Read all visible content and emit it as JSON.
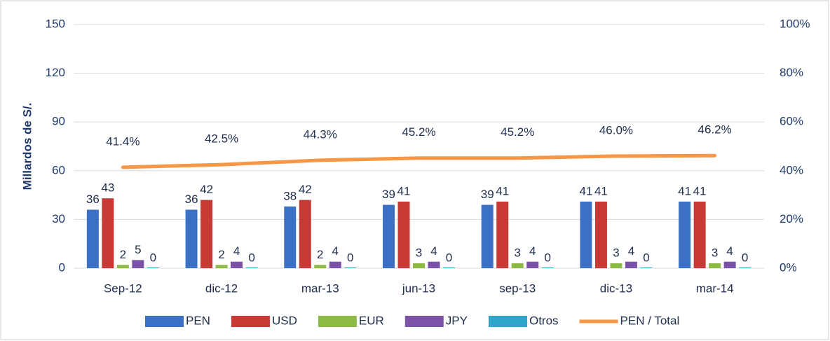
{
  "chart_data": {
    "type": "bar",
    "y_label": "Millardos de S/.",
    "categories": [
      "Sep-12",
      "dic-12",
      "mar-13",
      "jun-13",
      "sep-13",
      "dic-13",
      "mar-14"
    ],
    "series": [
      {
        "name": "PEN",
        "color": "#3b70c4",
        "values": [
          36,
          36,
          38,
          39,
          39,
          41,
          41
        ]
      },
      {
        "name": "USD",
        "color": "#c83a36",
        "values": [
          43,
          42,
          42,
          41,
          41,
          41,
          41
        ]
      },
      {
        "name": "EUR",
        "color": "#8cba45",
        "values": [
          2,
          2,
          2,
          3,
          3,
          3,
          3
        ]
      },
      {
        "name": "JPY",
        "color": "#7c52a8",
        "values": [
          5,
          4,
          4,
          4,
          4,
          4,
          4
        ]
      },
      {
        "name": "Otros",
        "color": "#2ea5c9",
        "values": [
          0,
          0,
          0,
          0,
          0,
          0,
          0
        ]
      },
      {
        "name": "PEN / Total",
        "color": "#f79646",
        "type": "line",
        "axis": "y2",
        "values": [
          41.4,
          42.5,
          44.3,
          45.2,
          45.2,
          46.0,
          46.2
        ],
        "value_labels": [
          "41.4%",
          "42.5%",
          "44.3%",
          "45.2%",
          "45.2%",
          "46.0%",
          "46.2%"
        ]
      }
    ],
    "ylim": [
      0,
      150
    ],
    "yticks": [
      0,
      30,
      60,
      90,
      120,
      150
    ],
    "y2lim": [
      0,
      100
    ],
    "y2ticks": [
      {
        "value": 0,
        "label": "0%"
      },
      {
        "value": 20,
        "label": "20%"
      },
      {
        "value": 40,
        "label": "40%"
      },
      {
        "value": 60,
        "label": "60%"
      },
      {
        "value": 80,
        "label": "80%"
      },
      {
        "value": 100,
        "label": "100%"
      }
    ],
    "grid": true,
    "legend": "bottom"
  }
}
